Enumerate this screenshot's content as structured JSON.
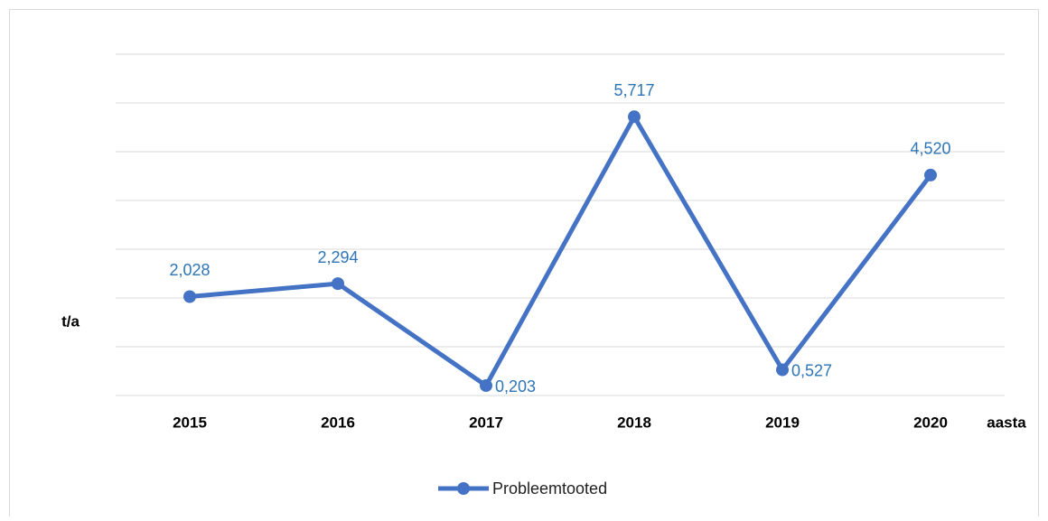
{
  "chart_data": {
    "type": "line",
    "categories": [
      "2015",
      "2016",
      "2017",
      "2018",
      "2019",
      "2020"
    ],
    "series": [
      {
        "name": "Probleemtooted",
        "color": "#4472c4",
        "values": [
          2.028,
          2.294,
          0.203,
          5.717,
          0.527,
          4.52
        ],
        "value_labels": [
          "2,028",
          "2,294",
          "0,203",
          "5,717",
          "0,527",
          "4,520"
        ]
      }
    ],
    "y_label": "t/a",
    "x_label": "aasta",
    "ylim": [
      0,
      7
    ],
    "yticks": [
      0,
      1,
      2,
      3,
      4,
      5,
      6,
      7
    ],
    "grid": true,
    "legend": "bottom"
  }
}
